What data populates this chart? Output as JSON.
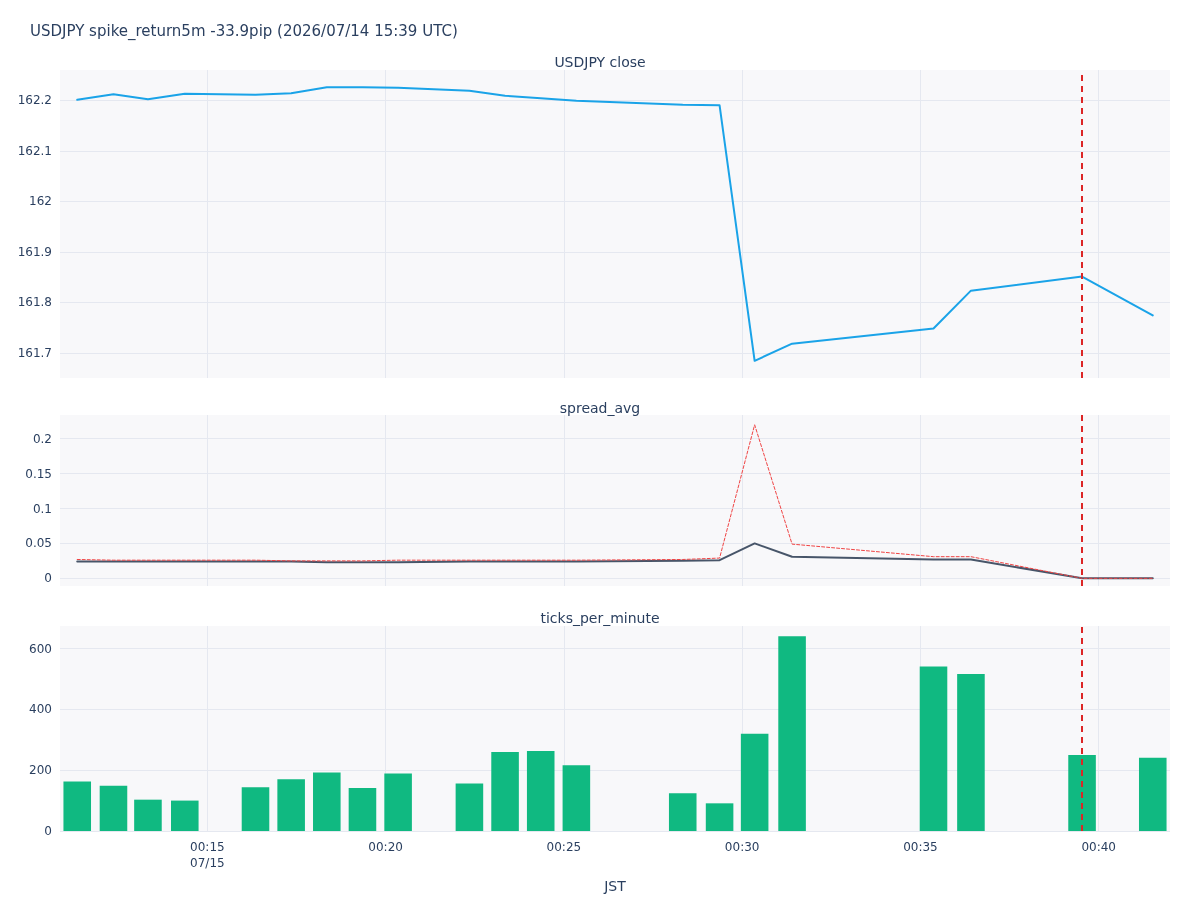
{
  "chart_data": [
    {
      "type": "line",
      "title": "USDJPY spike_return5m -33.9pip (2026/07/14 15:39 UTC)",
      "subtitle": "USDJPY close",
      "x": [
        "2026-07-15T00:11:21",
        "2026-07-15T00:12:22",
        "2026-07-15T00:13:20",
        "2026-07-15T00:14:22",
        "2026-07-15T00:16:21",
        "2026-07-15T00:17:21",
        "2026-07-15T00:18:21",
        "2026-07-15T00:19:21",
        "2026-07-15T00:20:21",
        "2026-07-15T00:22:21",
        "2026-07-15T00:23:21",
        "2026-07-15T00:24:21",
        "2026-07-15T00:25:21",
        "2026-07-15T00:28:20",
        "2026-07-15T00:29:22",
        "2026-07-15T00:30:21",
        "2026-07-15T00:31:24",
        "2026-07-15T00:35:22",
        "2026-07-15T00:36:25",
        "2026-07-15T00:39:32",
        "2026-07-15T00:41:31"
      ],
      "series": [
        {
          "color": "#1aa3e8",
          "values": [
            162.201,
            162.212,
            162.202,
            162.213,
            162.211,
            162.214,
            162.226,
            162.226,
            162.225,
            162.219,
            162.209,
            162.204,
            162.199,
            162.191,
            162.19,
            161.684,
            161.718,
            161.748,
            161.823,
            161.851,
            161.774
          ]
        }
      ],
      "xlim": [
        "2026-07-15T00:10:52",
        "2026-07-15T00:42:00"
      ],
      "xticks": [
        {
          "value": "2026-07-15T00:15",
          "label": null
        },
        {
          "value": "2026-07-15T00:20",
          "label": null
        },
        {
          "value": "2026-07-15T00:25",
          "label": null
        },
        {
          "value": "2026-07-15T00:30",
          "label": null
        },
        {
          "value": "2026-07-15T00:35",
          "label": null
        },
        {
          "value": "2026-07-15T00:40",
          "label": null
        }
      ],
      "ylim": [
        161.65,
        162.26
      ],
      "yticks": [
        161.7,
        161.8,
        161.9,
        162,
        162.1,
        162.2
      ],
      "ref_lines": [
        {
          "axis": "x",
          "value": "2026-07-15T00:39:32",
          "color": "#dc2626",
          "line_style": "dashed"
        }
      ],
      "grid": true,
      "marker": "none",
      "tick_labels": "y"
    },
    {
      "type": "line",
      "title": "spread_avg",
      "x": [
        "2026-07-15T00:11:21",
        "2026-07-15T00:12:22",
        "2026-07-15T00:13:20",
        "2026-07-15T00:14:22",
        "2026-07-15T00:16:21",
        "2026-07-15T00:17:21",
        "2026-07-15T00:18:21",
        "2026-07-15T00:19:21",
        "2026-07-15T00:20:21",
        "2026-07-15T00:22:21",
        "2026-07-15T00:23:21",
        "2026-07-15T00:24:21",
        "2026-07-15T00:25:21",
        "2026-07-15T00:28:20",
        "2026-07-15T00:29:22",
        "2026-07-15T00:30:21",
        "2026-07-15T00:31:24",
        "2026-07-15T00:35:22",
        "2026-07-15T00:36:25",
        "2026-07-15T00:39:32",
        "2026-07-15T00:41:31"
      ],
      "series": [
        {
          "color": "#ef4444",
          "line_style": "dashed",
          "values": [
            0.027,
            0.026,
            0.026,
            0.026,
            0.026,
            0.025,
            0.025,
            0.025,
            0.026,
            0.026,
            0.026,
            0.026,
            0.026,
            0.027,
            0.029,
            0.22,
            0.049,
            0.031,
            0.031,
            0,
            0
          ]
        },
        {
          "color": "#475569",
          "line_style": "solid",
          "values": [
            0.024,
            0.024,
            0.024,
            0.024,
            0.024,
            0.024,
            0.023,
            0.023,
            0.023,
            0.024,
            0.024,
            0.024,
            0.024,
            0.025,
            0.026,
            0.05,
            0.031,
            0.027,
            0.027,
            0,
            0
          ]
        }
      ],
      "xlim": [
        "2026-07-15T00:10:52",
        "2026-07-15T00:42:00"
      ],
      "xticks": [
        {
          "value": "2026-07-15T00:15",
          "label": null
        },
        {
          "value": "2026-07-15T00:20",
          "label": null
        },
        {
          "value": "2026-07-15T00:25",
          "label": null
        },
        {
          "value": "2026-07-15T00:30",
          "label": null
        },
        {
          "value": "2026-07-15T00:35",
          "label": null
        },
        {
          "value": "2026-07-15T00:40",
          "label": null
        }
      ],
      "ylim": [
        -0.011,
        0.234
      ],
      "yticks": [
        0,
        0.05,
        0.1,
        0.15,
        0.2
      ],
      "ref_lines": [
        {
          "axis": "x",
          "value": "2026-07-15T00:39:32",
          "color": "#dc2626",
          "line_style": "dashed"
        }
      ],
      "grid": true,
      "marker": "none",
      "tick_labels": "y"
    },
    {
      "type": "bar",
      "title": "ticks_per_minute",
      "xlabel": "JST",
      "x": [
        "2026-07-15T00:11:21",
        "2026-07-15T00:12:22",
        "2026-07-15T00:13:20",
        "2026-07-15T00:14:22",
        "2026-07-15T00:16:21",
        "2026-07-15T00:17:21",
        "2026-07-15T00:18:21",
        "2026-07-15T00:19:21",
        "2026-07-15T00:20:21",
        "2026-07-15T00:22:21",
        "2026-07-15T00:23:21",
        "2026-07-15T00:24:21",
        "2026-07-15T00:25:21",
        "2026-07-15T00:28:20",
        "2026-07-15T00:29:22",
        "2026-07-15T00:30:21",
        "2026-07-15T00:31:24",
        "2026-07-15T00:35:22",
        "2026-07-15T00:36:25",
        "2026-07-15T00:39:32",
        "2026-07-15T00:41:31"
      ],
      "series": [
        {
          "color": "#10b981",
          "values": [
            163,
            149,
            103,
            100,
            144,
            170,
            192,
            141,
            189,
            156,
            260,
            263,
            216,
            124,
            91,
            320,
            640,
            541,
            516,
            250,
            241
          ]
        }
      ],
      "xlim": [
        "2026-07-15T00:10:52",
        "2026-07-15T00:42:00"
      ],
      "xticks": [
        {
          "value": "2026-07-15T00:15",
          "label": "00:15\n07/15"
        },
        {
          "value": "2026-07-15T00:20",
          "label": "00:20"
        },
        {
          "value": "2026-07-15T00:25",
          "label": "00:25"
        },
        {
          "value": "2026-07-15T00:30",
          "label": "00:30"
        },
        {
          "value": "2026-07-15T00:35",
          "label": "00:35"
        },
        {
          "value": "2026-07-15T00:40",
          "label": "00:40"
        }
      ],
      "ylim": [
        0,
        674
      ],
      "yticks": [
        0,
        200,
        400,
        600
      ],
      "ref_lines": [
        {
          "axis": "x",
          "value": "2026-07-15T00:39:32",
          "color": "#dc2626",
          "line_style": "dashed"
        }
      ],
      "grid": true
    }
  ]
}
